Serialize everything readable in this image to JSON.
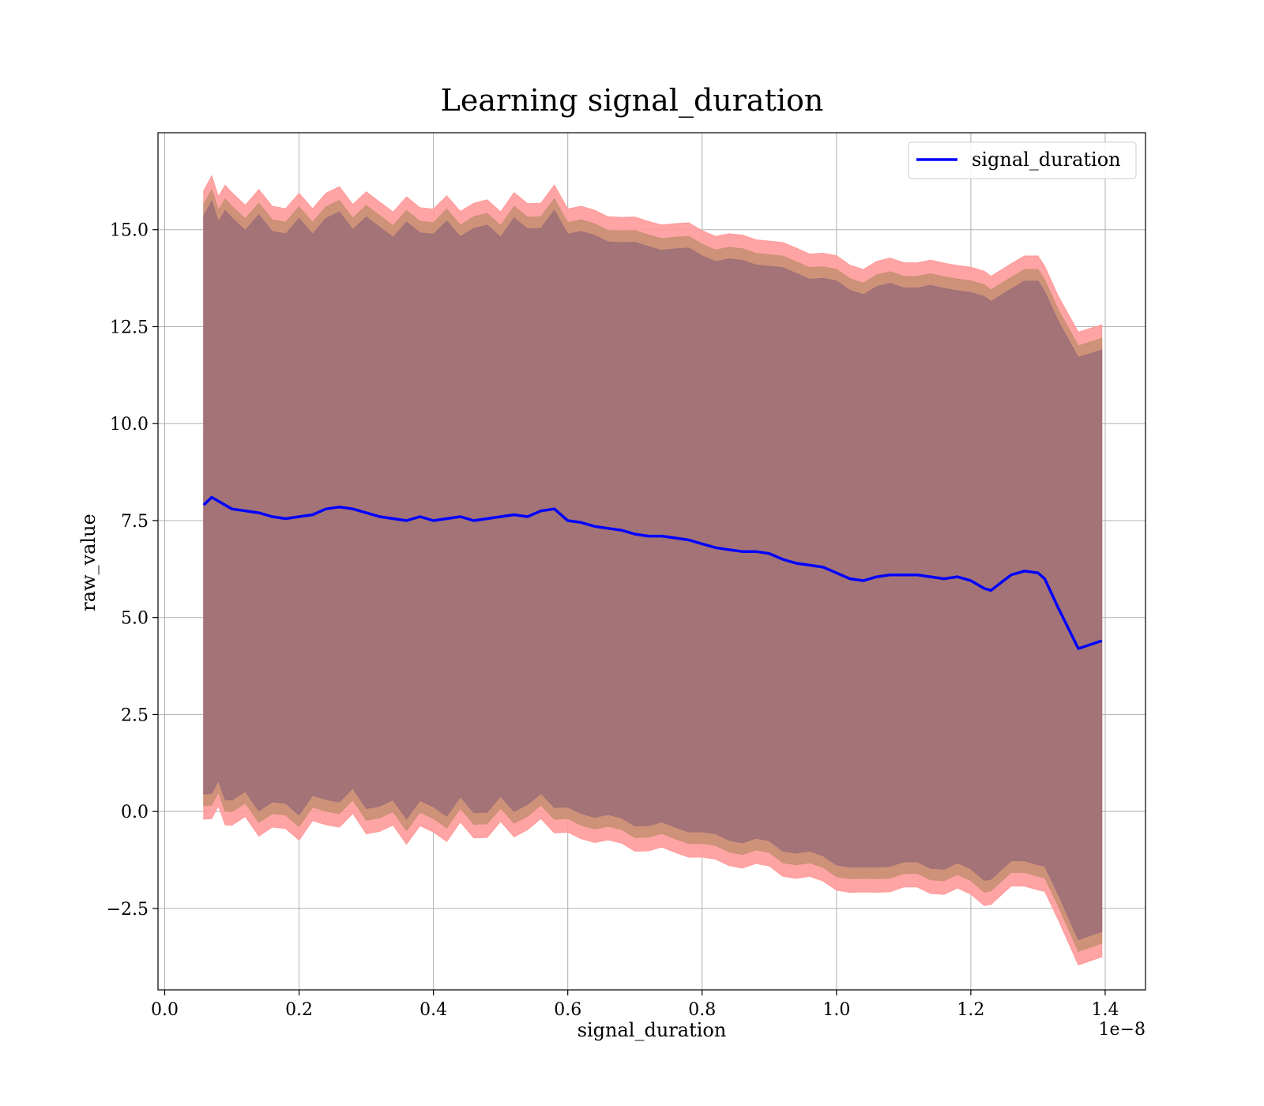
{
  "chart_data": {
    "type": "line",
    "title": "Learning signal_duration",
    "xlabel": "signal_duration",
    "ylabel": "raw_value",
    "x_offset_text": "1e−8",
    "xlim": [
      -0.01,
      1.46
    ],
    "ylim": [
      -4.6,
      17.5
    ],
    "x_ticks": [
      0.0,
      0.2,
      0.4,
      0.6,
      0.8,
      1.0,
      1.2,
      1.4
    ],
    "x_tick_labels": [
      "0.0",
      "0.2",
      "0.4",
      "0.6",
      "0.8",
      "1.0",
      "1.2",
      "1.4"
    ],
    "y_ticks": [
      -2.5,
      0.0,
      2.5,
      5.0,
      7.5,
      10.0,
      12.5,
      15.0
    ],
    "y_tick_labels": [
      "−2.5",
      "0.0",
      "2.5",
      "5.0",
      "7.5",
      "10.0",
      "12.5",
      "15.0"
    ],
    "grid": true,
    "legend_position": "top-right",
    "colors": {
      "line": "#0000ff",
      "band_outer": "#ff9a9a",
      "band_middle": "#c99074",
      "band_inner": "#a07078"
    },
    "series": [
      {
        "name": "signal_duration",
        "x": [
          0.058,
          0.07,
          0.08,
          0.09,
          0.1,
          0.12,
          0.14,
          0.16,
          0.18,
          0.2,
          0.22,
          0.24,
          0.26,
          0.28,
          0.3,
          0.32,
          0.34,
          0.36,
          0.38,
          0.4,
          0.42,
          0.44,
          0.46,
          0.48,
          0.5,
          0.52,
          0.54,
          0.56,
          0.58,
          0.6,
          0.62,
          0.64,
          0.66,
          0.68,
          0.7,
          0.72,
          0.74,
          0.76,
          0.78,
          0.8,
          0.82,
          0.84,
          0.86,
          0.88,
          0.9,
          0.92,
          0.94,
          0.96,
          0.98,
          1.0,
          1.02,
          1.04,
          1.06,
          1.08,
          1.1,
          1.12,
          1.14,
          1.16,
          1.18,
          1.2,
          1.22,
          1.23,
          1.26,
          1.28,
          1.3,
          1.31,
          1.33,
          1.36,
          1.395
        ],
        "y": [
          7.9,
          8.1,
          8.0,
          7.9,
          7.8,
          7.75,
          7.7,
          7.6,
          7.55,
          7.6,
          7.65,
          7.8,
          7.85,
          7.8,
          7.7,
          7.6,
          7.55,
          7.5,
          7.6,
          7.5,
          7.55,
          7.6,
          7.5,
          7.55,
          7.6,
          7.65,
          7.6,
          7.75,
          7.8,
          7.5,
          7.45,
          7.35,
          7.3,
          7.25,
          7.15,
          7.1,
          7.1,
          7.05,
          7.0,
          6.9,
          6.8,
          6.75,
          6.7,
          6.7,
          6.65,
          6.5,
          6.4,
          6.35,
          6.3,
          6.15,
          6.0,
          5.95,
          6.05,
          6.1,
          6.1,
          6.1,
          6.05,
          6.0,
          6.05,
          5.95,
          5.75,
          5.7,
          6.1,
          6.2,
          6.15,
          6.0,
          5.25,
          4.2,
          4.4
        ],
        "band_half_widths": [
          8.1,
          7.75,
          7.45
        ]
      }
    ]
  }
}
